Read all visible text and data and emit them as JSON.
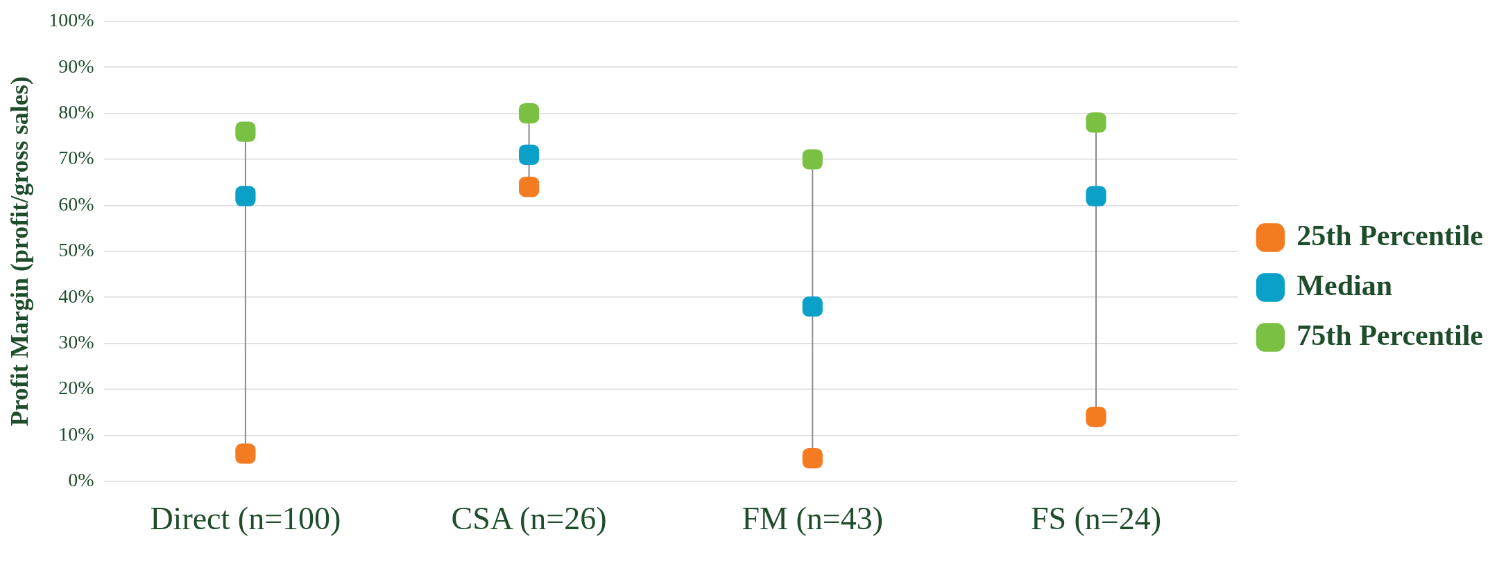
{
  "chart_data": {
    "type": "scatter",
    "ylabel": "Profit Margin (profit/gross sales)",
    "categories": [
      "Direct (n=100)",
      "CSA (n=26)",
      "FM (n=43)",
      "FS (n=24)"
    ],
    "series": [
      {
        "name": "25th Percentile",
        "color": "#f47b20",
        "values": [
          6,
          64,
          5,
          14
        ]
      },
      {
        "name": "Median",
        "color": "#0aa0c8",
        "values": [
          62,
          71,
          38,
          62
        ]
      },
      {
        "name": "75th Percentile",
        "color": "#7ac143",
        "values": [
          76,
          80,
          70,
          78
        ]
      }
    ],
    "ylim": [
      0,
      100
    ],
    "yticks": [
      {
        "value": 0,
        "label": "0%"
      },
      {
        "value": 10,
        "label": "10%"
      },
      {
        "value": 20,
        "label": "20%"
      },
      {
        "value": 30,
        "label": "30%"
      },
      {
        "value": 40,
        "label": "40%"
      },
      {
        "value": 50,
        "label": "50%"
      },
      {
        "value": 60,
        "label": "60%"
      },
      {
        "value": 70,
        "label": "70%"
      },
      {
        "value": 80,
        "label": "80%"
      },
      {
        "value": 90,
        "label": "90%"
      },
      {
        "value": 100,
        "label": "100%"
      }
    ],
    "grid": "y",
    "legend": "right",
    "marker": "square"
  }
}
